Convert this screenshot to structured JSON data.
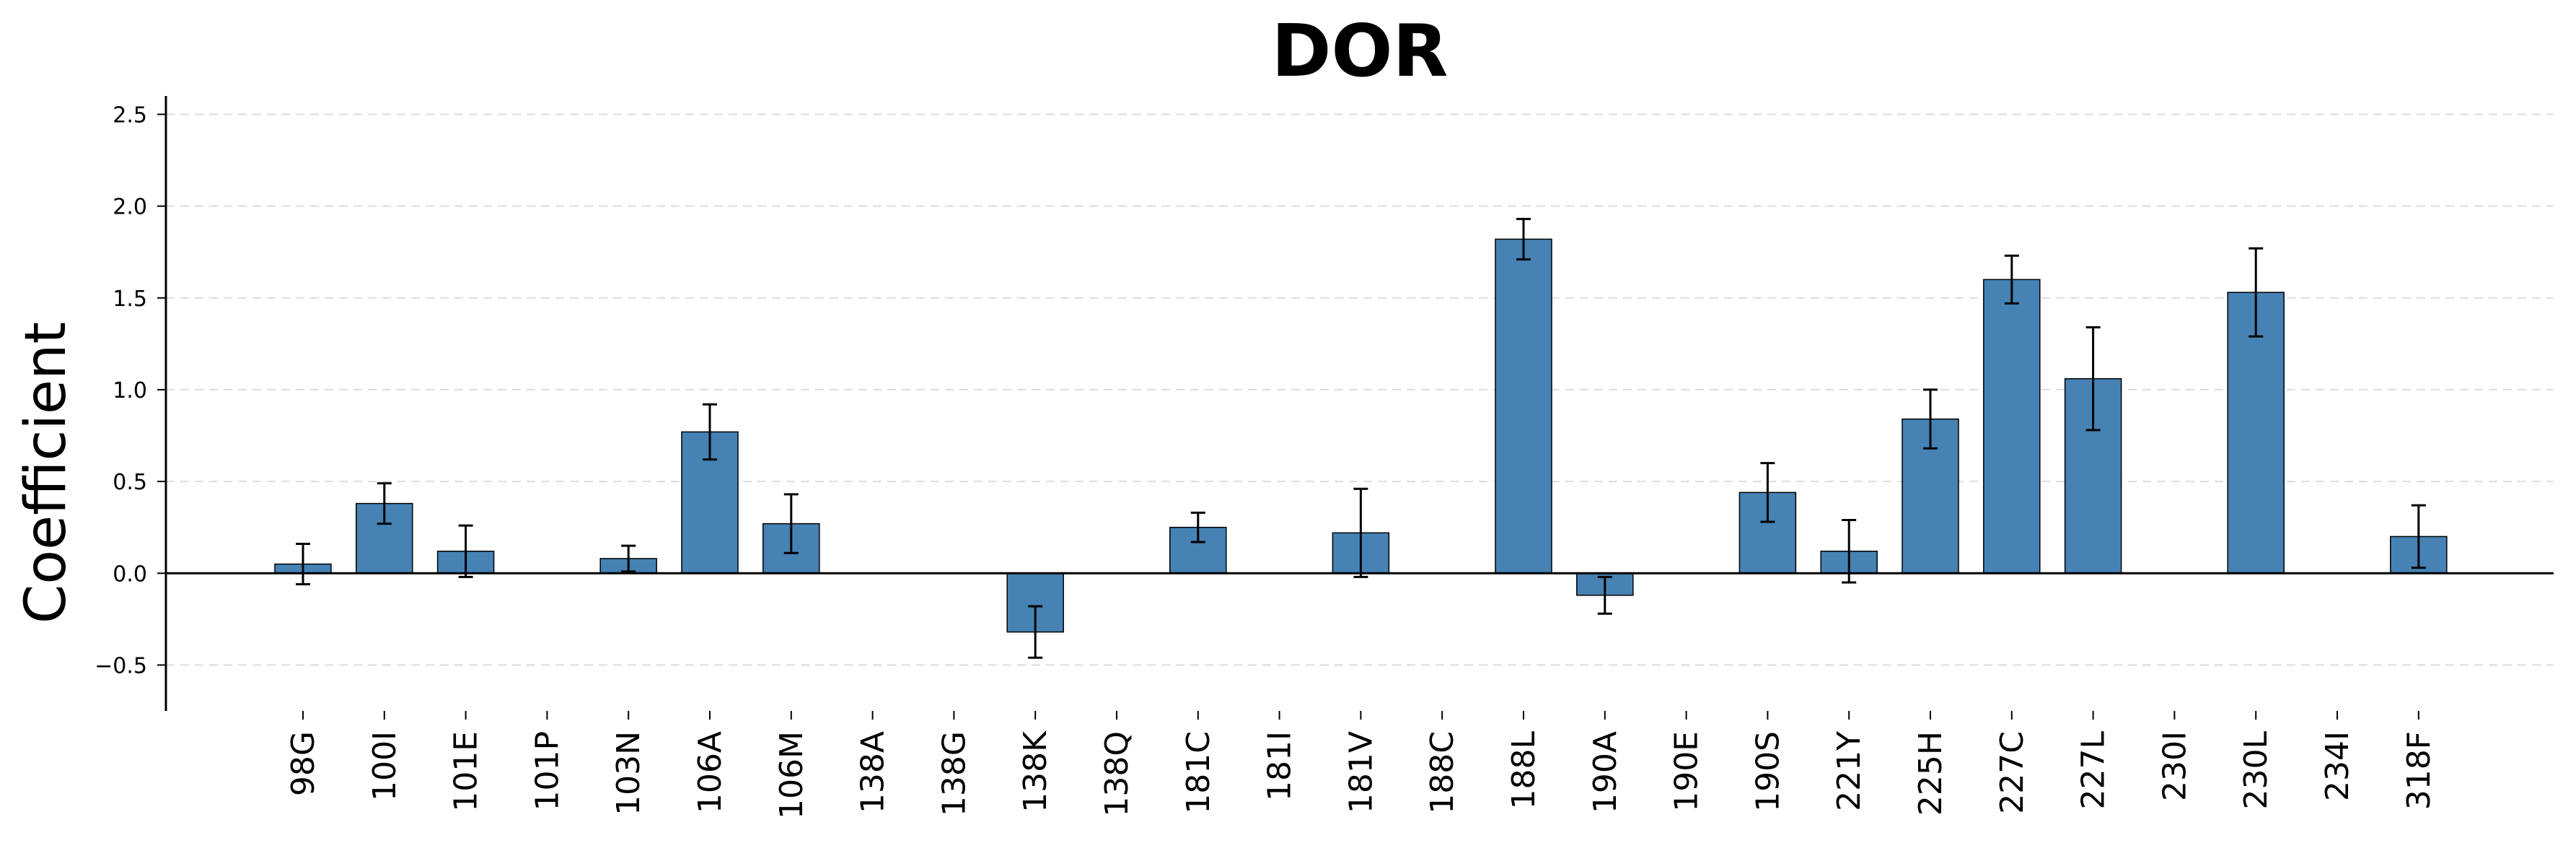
{
  "chart_data": {
    "type": "bar",
    "title": "DOR",
    "xlabel": "",
    "ylabel": "Coefficient",
    "ylim": [
      -0.75,
      2.6
    ],
    "yticks": [
      -0.5,
      0.0,
      0.5,
      1.0,
      1.5,
      2.0,
      2.5
    ],
    "ytick_labels": [
      "−0.5",
      "0.0",
      "0.5",
      "1.0",
      "1.5",
      "2.0",
      "2.5"
    ],
    "grid": "horizontal dashed",
    "bar_color": "#4682b4",
    "categories": [
      "98G",
      "100I",
      "101E",
      "101P",
      "103N",
      "106A",
      "106M",
      "138A",
      "138G",
      "138K",
      "138Q",
      "181C",
      "181I",
      "181V",
      "188C",
      "188L",
      "190A",
      "190E",
      "190S",
      "221Y",
      "225H",
      "227C",
      "227L",
      "230I",
      "230L",
      "234I",
      "318F"
    ],
    "values": [
      0.05,
      0.38,
      0.12,
      0.0,
      0.08,
      0.77,
      0.27,
      0.0,
      0.0,
      -0.32,
      0.0,
      0.25,
      0.0,
      0.22,
      0.0,
      1.82,
      -0.12,
      0.0,
      0.44,
      0.12,
      0.84,
      1.6,
      1.06,
      0.0,
      1.53,
      0.0,
      0.2
    ],
    "errors": [
      0.11,
      0.11,
      0.14,
      0.0,
      0.07,
      0.15,
      0.16,
      0.0,
      0.0,
      0.14,
      0.0,
      0.08,
      0.0,
      0.24,
      0.0,
      0.11,
      0.1,
      0.0,
      0.16,
      0.17,
      0.16,
      0.13,
      0.28,
      0.0,
      0.24,
      0.0,
      0.17
    ]
  }
}
